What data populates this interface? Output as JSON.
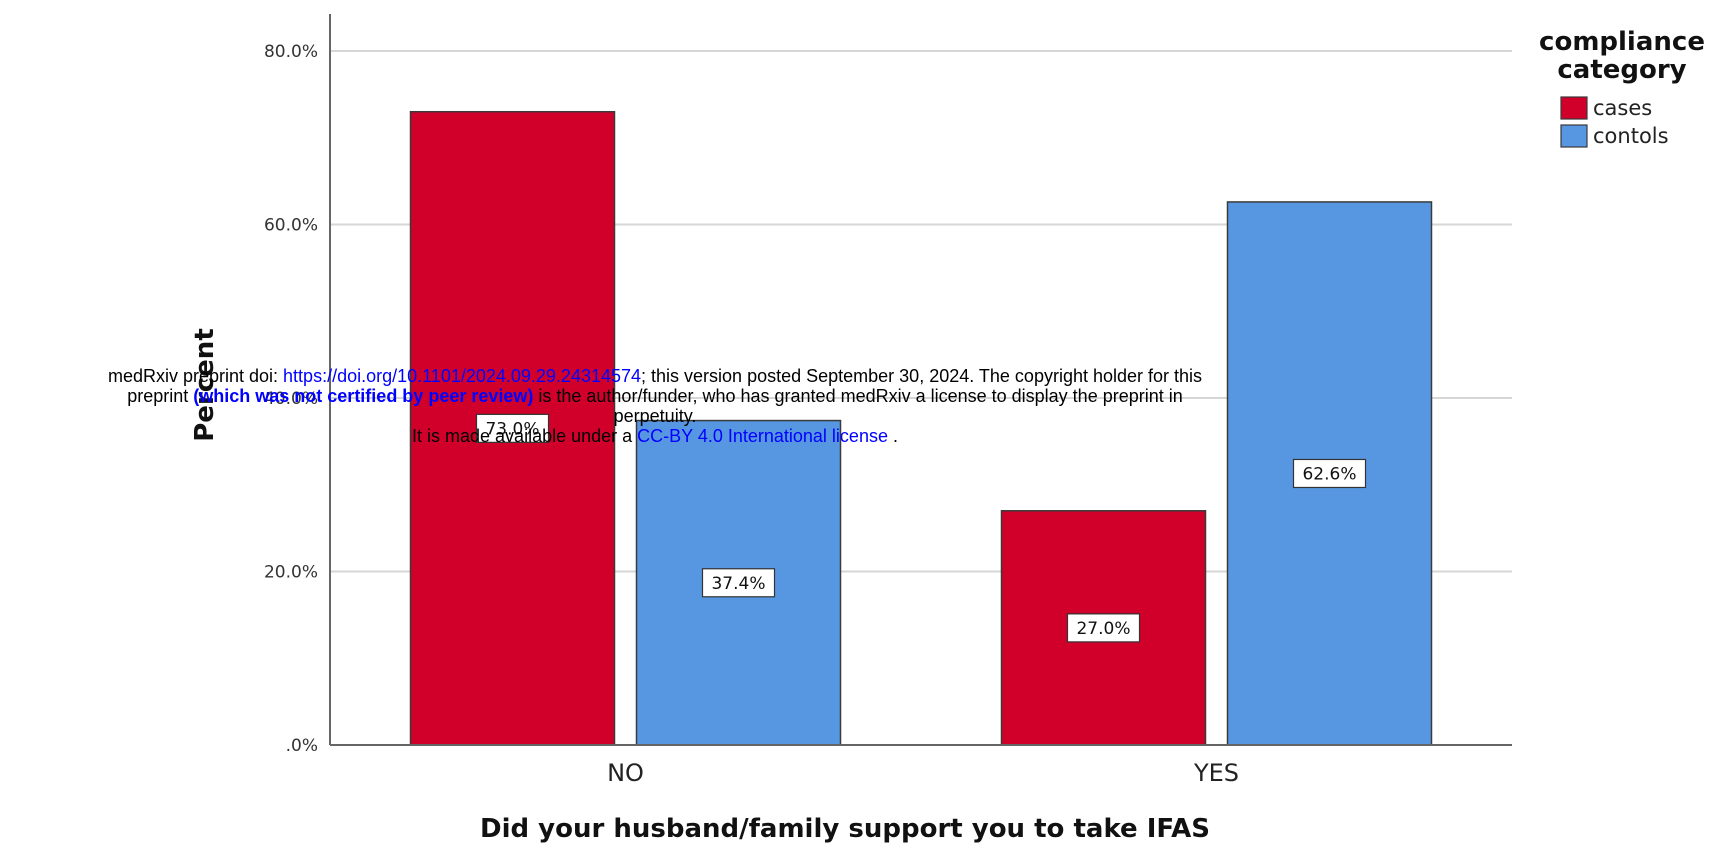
{
  "chart_data": {
    "type": "bar",
    "categories": [
      "NO",
      "YES"
    ],
    "series": [
      {
        "name": "cases",
        "values": [
          73.0,
          27.0
        ],
        "color": "#d0002b"
      },
      {
        "name": "contols",
        "values": [
          37.4,
          62.6
        ],
        "color": "#5797e1"
      }
    ],
    "data_labels": [
      [
        "73.0%",
        "27.0%"
      ],
      [
        "37.4%",
        "62.6%"
      ]
    ],
    "xlabel": "Did your husband/family support you to take IFAS",
    "ylabel": "Percent",
    "ylim": [
      0,
      80
    ],
    "yticks": [
      0,
      20,
      40,
      60,
      80
    ],
    "ytick_labels": [
      ".0%",
      "20.0%",
      "40.0%",
      "60.0%",
      "80.0%"
    ],
    "legend": {
      "title_line1": "compliance",
      "title_line2": "category",
      "placement": "top-right"
    },
    "grid": true
  },
  "notice": {
    "line1_prefix": "medRxiv preprint doi: ",
    "doi_link": "https://doi.org/10.1101/2024.09.29.24314574",
    "line1_suffix": "; this version posted September 30, 2024. The copyright holder for this",
    "line2_prefix": "preprint ",
    "line2_bold": "(which was not certified by peer review)",
    "line2_suffix": " is the author/funder, who has granted medRxiv a license to display the preprint in",
    "line3": "perpetuity.",
    "line4_prefix": "It is made available under a ",
    "license_link": "CC-BY 4.0 International license",
    "line4_suffix": " ."
  }
}
